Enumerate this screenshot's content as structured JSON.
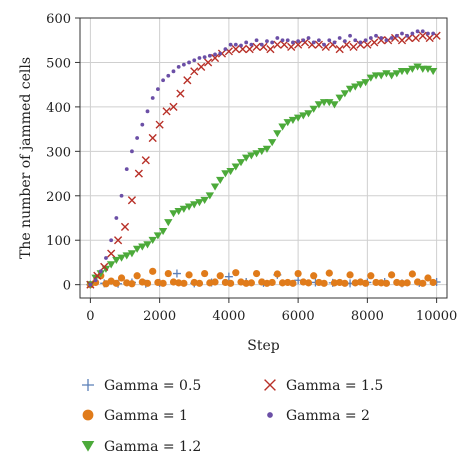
{
  "chart_data": {
    "type": "scatter",
    "title": "",
    "xlabel": "Step",
    "ylabel": "The number of jammed cells",
    "xlim": [
      -300,
      10300
    ],
    "ylim": [
      -30,
      600
    ],
    "xticks": [
      0,
      2000,
      4000,
      6000,
      8000,
      10000
    ],
    "yticks": [
      0,
      100,
      200,
      300,
      400,
      500,
      600
    ],
    "grid": true,
    "legend_position": "bottom",
    "series": [
      {
        "name": "Gamma = 0.5",
        "marker": "plus",
        "color": "#5b7fb8",
        "x": [
          0,
          400,
          800,
          1200,
          1600,
          2000,
          2500,
          3000,
          3500,
          4000,
          4500,
          5000,
          5400,
          6000,
          6500,
          7000,
          7500,
          8000,
          8500,
          9000,
          9500,
          10000
        ],
        "y": [
          0,
          3,
          2,
          5,
          2,
          4,
          25,
          3,
          5,
          18,
          6,
          4,
          22,
          10,
          5,
          4,
          3,
          5,
          6,
          3,
          4,
          6
        ]
      },
      {
        "name": "Gamma = 1",
        "marker": "circle",
        "color": "#e07b1a",
        "x": [
          0,
          150,
          300,
          450,
          600,
          750,
          900,
          1050,
          1200,
          1350,
          1500,
          1650,
          1800,
          1950,
          2100,
          2250,
          2400,
          2550,
          2700,
          2850,
          3000,
          3150,
          3300,
          3450,
          3600,
          3750,
          3900,
          4050,
          4200,
          4350,
          4500,
          4650,
          4800,
          4950,
          5100,
          5250,
          5400,
          5550,
          5700,
          5850,
          6000,
          6150,
          6300,
          6450,
          6600,
          6750,
          6900,
          7050,
          7200,
          7350,
          7500,
          7650,
          7800,
          7950,
          8100,
          8250,
          8400,
          8550,
          8700,
          8850,
          9000,
          9150,
          9300,
          9450,
          9600,
          9750,
          9900
        ],
        "y": [
          0,
          5,
          20,
          2,
          8,
          3,
          15,
          4,
          2,
          20,
          6,
          3,
          30,
          5,
          3,
          25,
          6,
          4,
          3,
          22,
          5,
          3,
          25,
          4,
          6,
          20,
          5,
          3,
          27,
          6,
          3,
          4,
          25,
          6,
          3,
          5,
          24,
          4,
          5,
          3,
          25,
          6,
          4,
          20,
          5,
          3,
          26,
          4,
          5,
          3,
          22,
          4,
          6,
          3,
          20,
          5,
          4,
          3,
          22,
          5,
          3,
          4,
          24,
          6,
          3,
          15,
          5
        ]
      },
      {
        "name": "Gamma = 1.2",
        "marker": "triangle-down",
        "color": "#4caa3a",
        "x": [
          0,
          150,
          300,
          450,
          600,
          750,
          900,
          1050,
          1200,
          1350,
          1500,
          1650,
          1800,
          1950,
          2100,
          2250,
          2400,
          2550,
          2700,
          2850,
          3000,
          3150,
          3300,
          3450,
          3600,
          3750,
          3900,
          4050,
          4200,
          4350,
          4500,
          4650,
          4800,
          4950,
          5100,
          5250,
          5400,
          5550,
          5700,
          5850,
          6000,
          6150,
          6300,
          6450,
          6600,
          6750,
          6900,
          7050,
          7200,
          7350,
          7500,
          7650,
          7800,
          7950,
          8100,
          8250,
          8400,
          8550,
          8700,
          8850,
          9000,
          9150,
          9300,
          9450,
          9600,
          9750,
          9900
        ],
        "y": [
          0,
          15,
          25,
          35,
          45,
          55,
          60,
          65,
          70,
          80,
          85,
          90,
          100,
          110,
          120,
          140,
          160,
          165,
          170,
          175,
          180,
          185,
          190,
          200,
          220,
          235,
          250,
          255,
          265,
          275,
          285,
          290,
          295,
          300,
          305,
          320,
          340,
          355,
          365,
          370,
          375,
          380,
          385,
          395,
          405,
          410,
          410,
          405,
          420,
          430,
          440,
          445,
          450,
          455,
          465,
          470,
          470,
          475,
          470,
          475,
          480,
          480,
          485,
          490,
          485,
          485,
          480
        ]
      },
      {
        "name": "Gamma = 1.5",
        "marker": "cross",
        "color": "#b83028",
        "x": [
          0,
          200,
          400,
          600,
          800,
          1000,
          1200,
          1400,
          1600,
          1800,
          2000,
          2200,
          2400,
          2600,
          2800,
          3000,
          3200,
          3400,
          3600,
          3800,
          4000,
          4200,
          4400,
          4600,
          4800,
          5000,
          5200,
          5400,
          5600,
          5800,
          6000,
          6200,
          6400,
          6600,
          6800,
          7000,
          7200,
          7400,
          7600,
          7800,
          8000,
          8200,
          8400,
          8600,
          8800,
          9000,
          9200,
          9400,
          9600,
          9800,
          10000
        ],
        "y": [
          0,
          20,
          40,
          70,
          100,
          130,
          190,
          250,
          280,
          330,
          360,
          390,
          400,
          430,
          460,
          480,
          490,
          500,
          510,
          520,
          525,
          530,
          530,
          530,
          535,
          535,
          530,
          540,
          540,
          535,
          540,
          545,
          540,
          540,
          535,
          540,
          530,
          540,
          535,
          540,
          540,
          545,
          550,
          550,
          555,
          550,
          555,
          555,
          560,
          555,
          560
        ]
      },
      {
        "name": "Gamma = 2",
        "marker": "dot",
        "color": "#6b4fa6",
        "x": [
          0,
          150,
          300,
          450,
          600,
          750,
          900,
          1050,
          1200,
          1350,
          1500,
          1650,
          1800,
          1950,
          2100,
          2250,
          2400,
          2550,
          2700,
          2850,
          3000,
          3150,
          3300,
          3450,
          3600,
          3750,
          3900,
          4050,
          4200,
          4350,
          4500,
          4650,
          4800,
          4950,
          5100,
          5250,
          5400,
          5550,
          5700,
          5850,
          6000,
          6150,
          6300,
          6450,
          6600,
          6750,
          6900,
          7050,
          7200,
          7350,
          7500,
          7650,
          7800,
          7950,
          8100,
          8250,
          8400,
          8550,
          8700,
          8850,
          9000,
          9150,
          9300,
          9450,
          9600,
          9750,
          9900
        ],
        "y": [
          0,
          10,
          30,
          60,
          100,
          150,
          200,
          260,
          300,
          330,
          360,
          390,
          420,
          440,
          460,
          470,
          480,
          490,
          495,
          500,
          505,
          510,
          512,
          515,
          518,
          520,
          530,
          540,
          540,
          538,
          545,
          540,
          550,
          540,
          548,
          545,
          555,
          550,
          550,
          545,
          548,
          550,
          555,
          545,
          550,
          540,
          550,
          545,
          555,
          548,
          560,
          550,
          545,
          550,
          555,
          560,
          555,
          550,
          555,
          560,
          565,
          560,
          565,
          570,
          570,
          565,
          565
        ]
      }
    ]
  }
}
